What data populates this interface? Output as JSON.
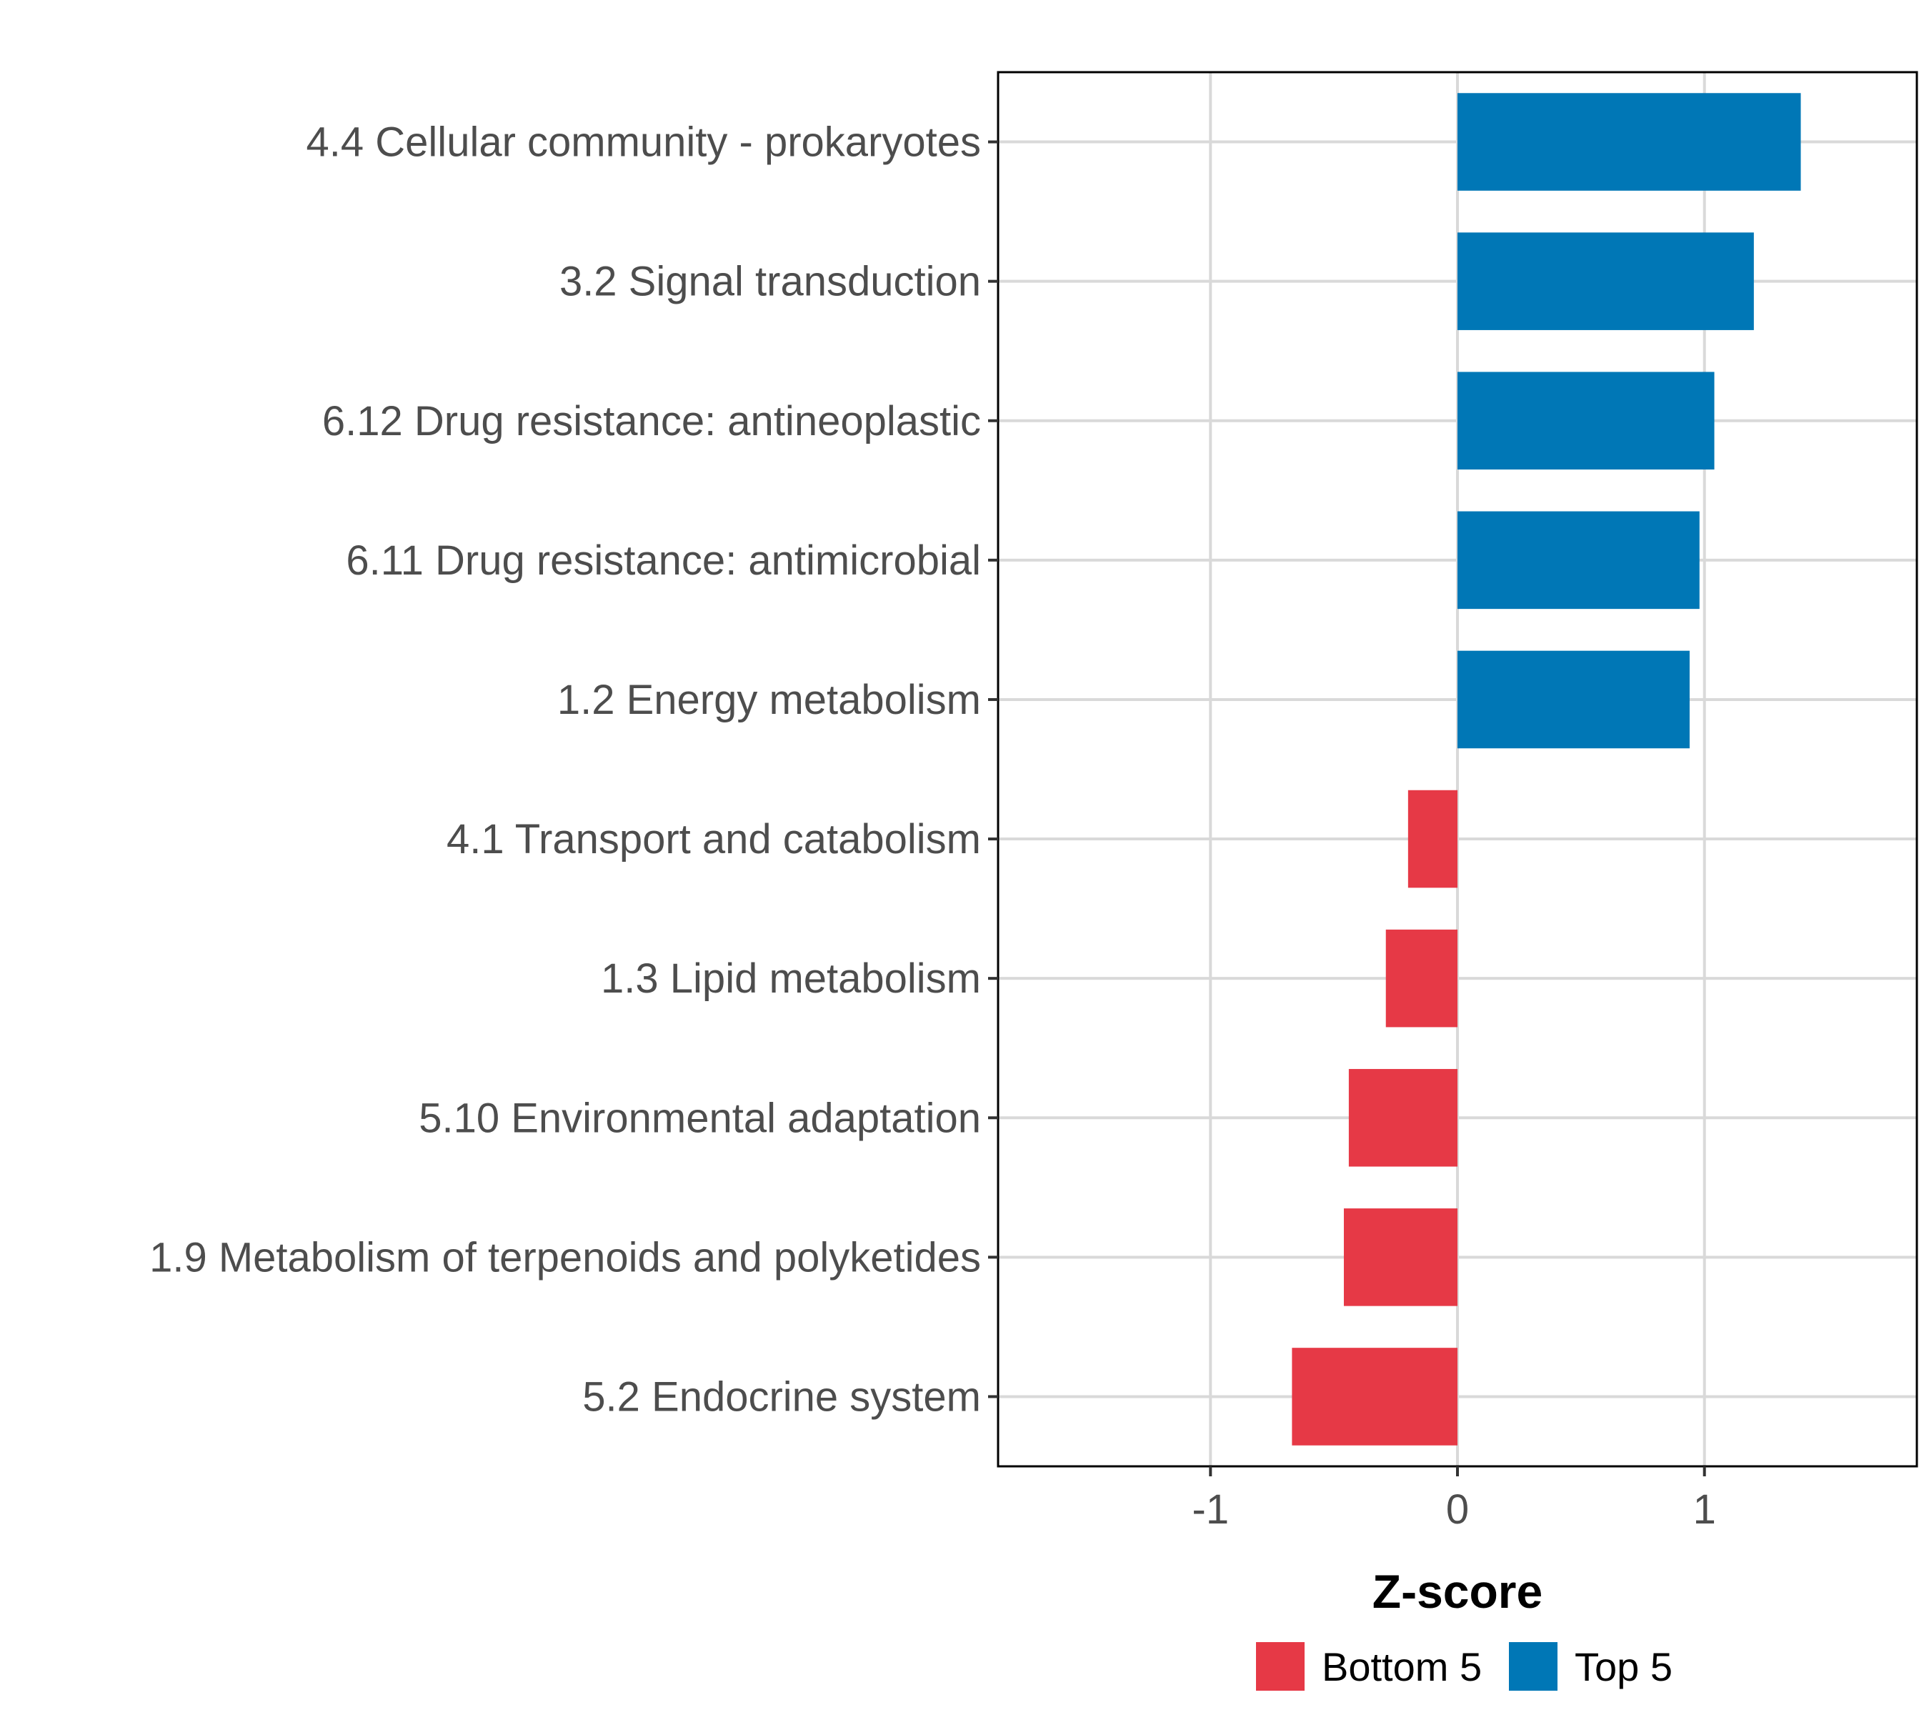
{
  "chart_data": {
    "type": "bar",
    "orientation": "horizontal",
    "categories": [
      "4.4 Cellular community - prokaryotes",
      "3.2 Signal transduction",
      "6.12 Drug resistance: antineoplastic",
      "6.11 Drug resistance: antimicrobial",
      "1.2 Energy metabolism",
      "4.1 Transport and catabolism",
      "1.3 Lipid metabolism",
      "5.10 Environmental adaptation",
      "1.9 Metabolism of terpenoids and polyketides",
      "5.2 Endocrine system"
    ],
    "values": [
      1.39,
      1.2,
      1.04,
      0.98,
      0.94,
      -0.2,
      -0.29,
      -0.44,
      -0.46,
      -0.67
    ],
    "groups": [
      "Top 5",
      "Top 5",
      "Top 5",
      "Top 5",
      "Top 5",
      "Bottom 5",
      "Bottom 5",
      "Bottom 5",
      "Bottom 5",
      "Bottom 5"
    ],
    "title": "",
    "xlabel": "Z-score",
    "ylabel": "",
    "xlim": [
      -1.86,
      1.86
    ],
    "xticks": [
      -1,
      0,
      1
    ],
    "xtick_labels": [
      "-1",
      "0",
      "1"
    ],
    "grid": true,
    "legend": {
      "position": "bottom",
      "entries": [
        {
          "label": "Bottom 5",
          "color": "#e63946"
        },
        {
          "label": "Top 5",
          "color": "#0077b6"
        }
      ]
    },
    "colors": {
      "Top 5": "#0077b6",
      "Bottom 5": "#e63946",
      "grid": "#d9d9d9",
      "border": "#000000",
      "label": "#4d4d4d"
    }
  }
}
